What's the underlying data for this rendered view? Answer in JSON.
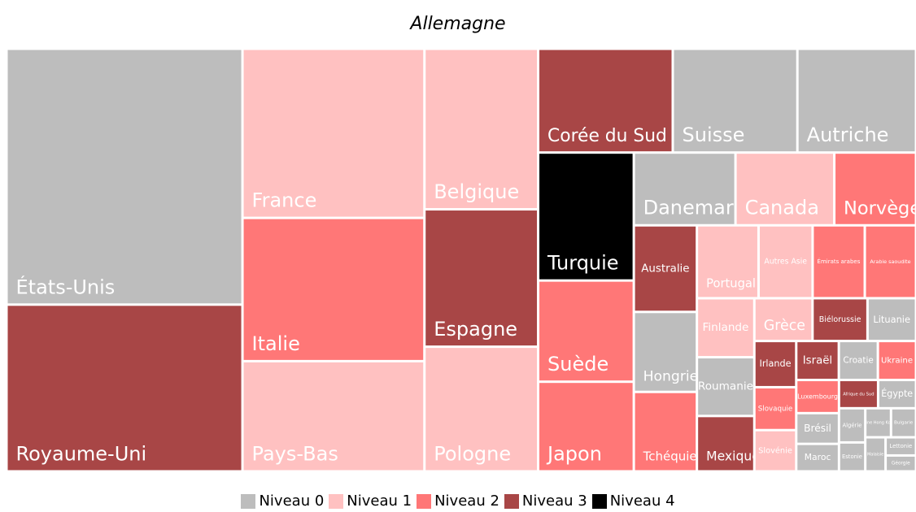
{
  "chart_data": {
    "type": "treemap",
    "title": "Allemagne",
    "levels": [
      {
        "name": "Niveau 0",
        "color": "#bdbdbd"
      },
      {
        "name": "Niveau 1",
        "color": "#ffc1c1"
      },
      {
        "name": "Niveau 2",
        "color": "#ff7777"
      },
      {
        "name": "Niveau 3",
        "color": "#a84646"
      },
      {
        "name": "Niveau 4",
        "color": "#000000"
      }
    ],
    "items": [
      {
        "label": "États-Unis",
        "value": 87300,
        "level": 0
      },
      {
        "label": "Royaume-Uni",
        "value": 56900,
        "level": 3
      },
      {
        "label": "France",
        "value": 44500,
        "level": 1
      },
      {
        "label": "Italie",
        "value": 37700,
        "level": 2
      },
      {
        "label": "Pays-Bas",
        "value": 29000,
        "level": 1
      },
      {
        "label": "Belgique",
        "value": 26400,
        "level": 1
      },
      {
        "label": "Espagne",
        "value": 22600,
        "level": 3
      },
      {
        "label": "Pologne",
        "value": 20500,
        "level": 1
      },
      {
        "label": "Corée du Sud",
        "value": 20200,
        "level": 3
      },
      {
        "label": "Suisse",
        "value": 18700,
        "level": 0
      },
      {
        "label": "Autriche",
        "value": 17800,
        "level": 0
      },
      {
        "label": "Turquie",
        "value": 17700,
        "level": 4
      },
      {
        "label": "Suède",
        "value": 14000,
        "level": 2
      },
      {
        "label": "Japon",
        "value": 12400,
        "level": 2
      },
      {
        "label": "Danemark",
        "value": 10700,
        "level": 0
      },
      {
        "label": "Canada",
        "value": 10400,
        "level": 1
      },
      {
        "label": "Norvège",
        "value": 8600,
        "level": 2
      },
      {
        "label": "Australie",
        "value": 7900,
        "level": 3
      },
      {
        "label": "Hongrie",
        "value": 7300,
        "level": 0
      },
      {
        "label": "Tchéquie",
        "value": 7250,
        "level": 2
      },
      {
        "label": "Portugal",
        "value": 6500,
        "level": 1
      },
      {
        "label": "Autres Asie",
        "value": 5700,
        "level": 1
      },
      {
        "label": "Émirats arabes",
        "value": 5500,
        "level": 2
      },
      {
        "label": "Arabie saoudite",
        "value": 5400,
        "level": 2
      },
      {
        "label": "Finlande",
        "value": 4900,
        "level": 1
      },
      {
        "label": "Roumanie",
        "value": 4880,
        "level": 0
      },
      {
        "label": "Mexique",
        "value": 4600,
        "level": 3
      },
      {
        "label": "Grèce",
        "value": 3600,
        "level": 1
      },
      {
        "label": "Biélorussie",
        "value": 3400,
        "level": 3
      },
      {
        "label": "Lituanie",
        "value": 3000,
        "level": 0
      },
      {
        "label": "Irlande",
        "value": 2800,
        "level": 3
      },
      {
        "label": "Slovaquie",
        "value": 2600,
        "level": 2
      },
      {
        "label": "Slovénie",
        "value": 2500,
        "level": 1
      },
      {
        "label": "Israël",
        "value": 2400,
        "level": 3
      },
      {
        "label": "Croatie",
        "value": 2200,
        "level": 0
      },
      {
        "label": "Ukraine",
        "value": 2150,
        "level": 2
      },
      {
        "label": "Luxembourg",
        "value": 2050,
        "level": 2
      },
      {
        "label": "Brésil",
        "value": 1900,
        "level": 0
      },
      {
        "label": "Maroc",
        "value": 1700,
        "level": 0
      },
      {
        "label": "Afrique du Sud",
        "value": 1600,
        "level": 3
      },
      {
        "label": "Égypte",
        "value": 1550,
        "level": 0
      },
      {
        "label": "Algérie",
        "value": 1300,
        "level": 0
      },
      {
        "label": "Estonie",
        "value": 1100,
        "level": 0
      },
      {
        "label": "Chine Hong Kong",
        "value": 1080,
        "level": 0
      },
      {
        "label": "Bulgarie",
        "value": 1050,
        "level": 0
      },
      {
        "label": "Malaisie",
        "value": 1000,
        "level": 0
      },
      {
        "label": "Lettonie",
        "value": 800,
        "level": 0
      },
      {
        "label": "Géorgie",
        "value": 700,
        "level": 0
      }
    ]
  }
}
